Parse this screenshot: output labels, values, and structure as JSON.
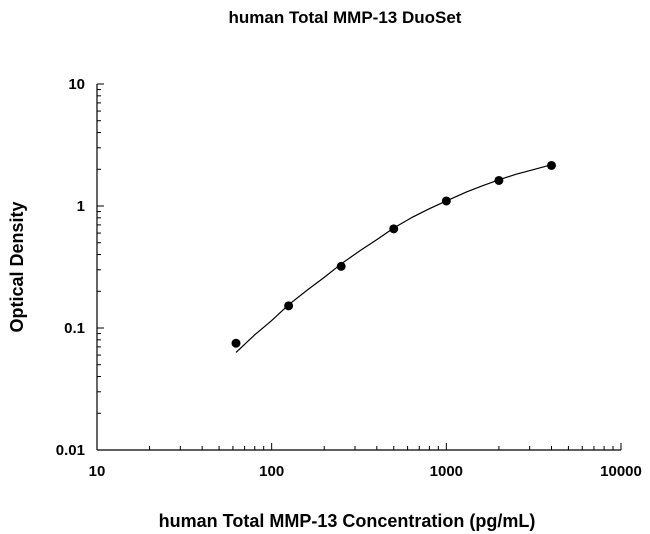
{
  "chart_data": {
    "type": "scatter",
    "title": "human Total MMP-13 DuoSet",
    "xlabel": "human Total MMP-13 Concentration (pg/mL)",
    "ylabel": "Optical Density",
    "x_scale": "log",
    "y_scale": "log",
    "xlim": [
      10,
      10000
    ],
    "ylim": [
      0.01,
      10
    ],
    "x_ticks": [
      "10",
      "100",
      "1000",
      "10000"
    ],
    "y_ticks": [
      "0.01",
      "0.1",
      "1",
      "10"
    ],
    "grid": false,
    "series": [
      {
        "type": "scatter",
        "color": "#000000",
        "points": [
          {
            "x": 62.5,
            "y": 0.075
          },
          {
            "x": 125,
            "y": 0.152
          },
          {
            "x": 250,
            "y": 0.32
          },
          {
            "x": 500,
            "y": 0.65
          },
          {
            "x": 1000,
            "y": 1.1
          },
          {
            "x": 2000,
            "y": 1.62
          },
          {
            "x": 4000,
            "y": 2.15
          }
        ]
      },
      {
        "type": "line",
        "color": "#000000",
        "points": [
          {
            "x": 62.5,
            "y": 0.063
          },
          {
            "x": 80,
            "y": 0.088
          },
          {
            "x": 100,
            "y": 0.115
          },
          {
            "x": 125,
            "y": 0.155
          },
          {
            "x": 160,
            "y": 0.205
          },
          {
            "x": 200,
            "y": 0.26
          },
          {
            "x": 250,
            "y": 0.335
          },
          {
            "x": 320,
            "y": 0.43
          },
          {
            "x": 400,
            "y": 0.53
          },
          {
            "x": 500,
            "y": 0.66
          },
          {
            "x": 640,
            "y": 0.81
          },
          {
            "x": 800,
            "y": 0.95
          },
          {
            "x": 1000,
            "y": 1.1
          },
          {
            "x": 1300,
            "y": 1.3
          },
          {
            "x": 1600,
            "y": 1.46
          },
          {
            "x": 2000,
            "y": 1.64
          },
          {
            "x": 2500,
            "y": 1.82
          },
          {
            "x": 3200,
            "y": 2.0
          },
          {
            "x": 4000,
            "y": 2.18
          }
        ]
      }
    ]
  }
}
